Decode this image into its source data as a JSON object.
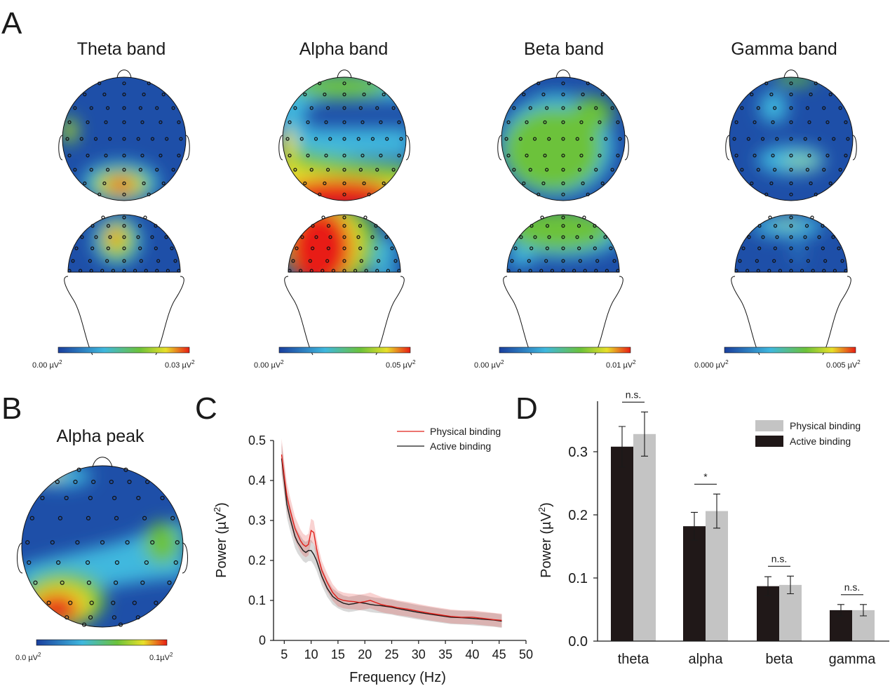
{
  "panels": {
    "a": "A",
    "b": "B",
    "c": "C",
    "d": "D"
  },
  "colors": {
    "map_low": "#1e4fa8",
    "map_cyan": "#3fb8de",
    "map_green": "#6cc23a",
    "map_yellow": "#e8e02a",
    "map_red": "#e81e14",
    "line_physical": "#e0201a",
    "line_active": "#1a1a1a",
    "bar_active": "#201818",
    "bar_physical": "#c4c4c4"
  },
  "bands": [
    {
      "title": "Theta band",
      "cb_min": "0.00 µV",
      "cb_max": "0.03 µV",
      "cb_unit": "2"
    },
    {
      "title": "Alpha band",
      "cb_min": "0.00 µV",
      "cb_max": "0.05 µV",
      "cb_unit": "2"
    },
    {
      "title": "Beta band",
      "cb_min": "0.00 µV",
      "cb_max": "0.01 µV",
      "cb_unit": "2"
    },
    {
      "title": "Gamma band",
      "cb_min": "0.000 µV",
      "cb_max": "0.005 µV",
      "cb_unit": "2"
    }
  ],
  "alpha_peak": {
    "title": "Alpha peak",
    "cb_min": "0.0 µV",
    "cb_max": "0.1µV",
    "cb_unit": "2"
  },
  "chart_data": [
    {
      "type": "line",
      "title": "",
      "xlabel": "Frequency (Hz)",
      "ylabel_main": "Power (µV",
      "ylabel_sup": "2",
      "ylabel_end": ")",
      "xlim": [
        3,
        50
      ],
      "ylim": [
        0,
        0.5
      ],
      "xticks": [
        "5",
        "10",
        "15",
        "20",
        "25",
        "30",
        "35",
        "40",
        "45",
        "50"
      ],
      "yticks": [
        "0",
        "0.1",
        "0.2",
        "0.3",
        "0.4",
        "0.5"
      ],
      "legend": [
        "Physical binding",
        "Active binding"
      ],
      "series": [
        {
          "name": "Physical binding",
          "x": [
            4.5,
            5,
            5.5,
            6,
            6.5,
            7,
            7.5,
            8,
            8.5,
            9,
            9.5,
            10,
            10.5,
            11,
            11.5,
            12,
            13,
            14,
            15,
            16,
            17,
            18,
            19,
            20,
            21,
            22,
            23,
            24,
            25,
            26,
            28,
            30,
            32,
            34,
            36,
            38,
            40,
            42,
            44,
            45.5
          ],
          "y": [
            0.465,
            0.41,
            0.36,
            0.33,
            0.305,
            0.28,
            0.265,
            0.25,
            0.24,
            0.235,
            0.24,
            0.275,
            0.27,
            0.23,
            0.2,
            0.175,
            0.145,
            0.12,
            0.105,
            0.1,
            0.098,
            0.097,
            0.095,
            0.097,
            0.1,
            0.095,
            0.09,
            0.087,
            0.085,
            0.082,
            0.078,
            0.073,
            0.068,
            0.064,
            0.06,
            0.058,
            0.058,
            0.055,
            0.052,
            0.05
          ]
        },
        {
          "name": "Active binding",
          "x": [
            4.5,
            5,
            5.5,
            6,
            6.5,
            7,
            7.5,
            8,
            8.5,
            9,
            9.5,
            10,
            10.5,
            11,
            11.5,
            12,
            13,
            14,
            15,
            16,
            17,
            18,
            19,
            20,
            21,
            22,
            23,
            24,
            25,
            26,
            28,
            30,
            32,
            34,
            36,
            38,
            40,
            42,
            44,
            45.5
          ],
          "y": [
            0.455,
            0.4,
            0.34,
            0.31,
            0.285,
            0.26,
            0.245,
            0.235,
            0.225,
            0.22,
            0.225,
            0.225,
            0.215,
            0.2,
            0.18,
            0.16,
            0.13,
            0.11,
            0.1,
            0.093,
            0.09,
            0.092,
            0.095,
            0.093,
            0.09,
            0.088,
            0.087,
            0.085,
            0.083,
            0.08,
            0.075,
            0.07,
            0.066,
            0.062,
            0.058,
            0.057,
            0.055,
            0.053,
            0.051,
            0.048
          ]
        }
      ],
      "band_half_width": 0.04
    },
    {
      "type": "bar",
      "title": "",
      "ylabel_main": "Power (µV",
      "ylabel_sup": "2",
      "ylabel_end": ")",
      "categories": [
        "theta",
        "alpha",
        "beta",
        "gamma"
      ],
      "ylim": [
        0,
        0.38
      ],
      "yticks": [
        "0.0",
        "0.1",
        "0.2",
        "0.3"
      ],
      "legend": [
        "Physical binding",
        "Active binding"
      ],
      "series": [
        {
          "name": "Active binding",
          "values": [
            0.308,
            0.182,
            0.087,
            0.049
          ],
          "errors": [
            0.032,
            0.022,
            0.015,
            0.009
          ]
        },
        {
          "name": "Physical binding",
          "values": [
            0.328,
            0.206,
            0.089,
            0.049
          ],
          "errors": [
            0.035,
            0.027,
            0.014,
            0.009
          ]
        }
      ],
      "significance": [
        "n.s.",
        "*",
        "n.s.",
        "n.s."
      ]
    }
  ]
}
